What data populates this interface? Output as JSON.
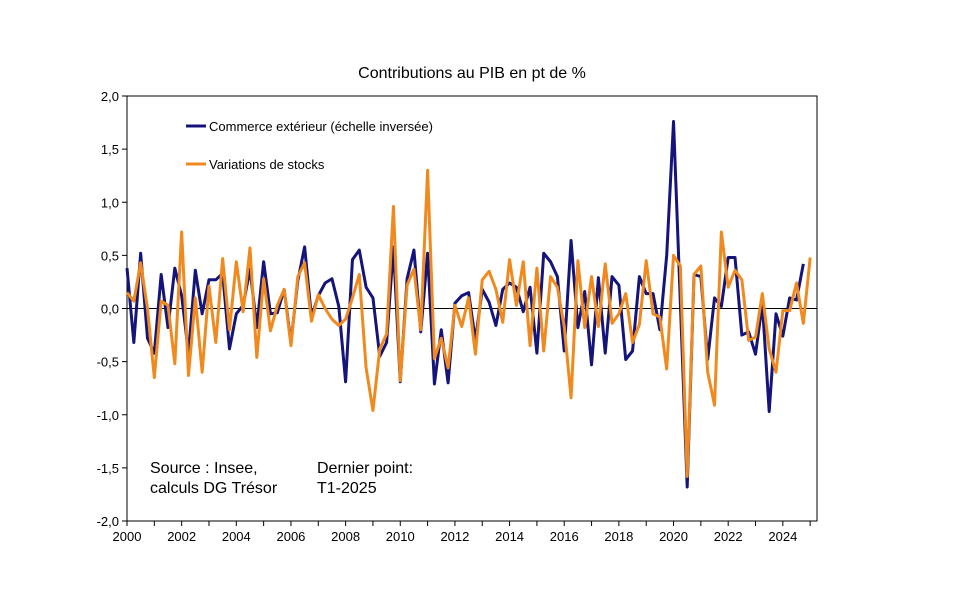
{
  "chart_data": {
    "type": "line",
    "title": "Contributions au PIB en pt de %",
    "xlabel": "",
    "ylabel": "",
    "xlim": [
      2000,
      2025.25
    ],
    "ylim": [
      -2.0,
      2.0
    ],
    "ytick_values": [
      2.0,
      1.5,
      1.0,
      0.5,
      0.0,
      -0.5,
      -1.0,
      -1.5,
      -2.0
    ],
    "ytick_labels": [
      "2,0",
      "1,5",
      "1,0",
      "0,5",
      "0,0",
      "-0,5",
      "-1,0",
      "-1,5",
      "-2,0"
    ],
    "xtick_values": [
      2000,
      2002,
      2004,
      2006,
      2008,
      2010,
      2012,
      2014,
      2016,
      2018,
      2020,
      2022,
      2024
    ],
    "xtick_labels": [
      "2000",
      "2002",
      "2004",
      "2006",
      "2008",
      "2010",
      "2012",
      "2014",
      "2016",
      "2018",
      "2020",
      "2022",
      "2024"
    ],
    "x_start": 2000,
    "x_step": 0.25,
    "legend_position": "top-left",
    "series": [
      {
        "name": "Commerce extérieur (échelle inversée)",
        "color": "#14147a",
        "values": [
          0.38,
          -0.32,
          0.52,
          -0.28,
          -0.42,
          0.32,
          -0.18,
          0.38,
          0.12,
          -0.42,
          0.36,
          -0.05,
          0.27,
          0.27,
          0.33,
          -0.38,
          -0.05,
          0.03,
          0.37,
          -0.18,
          0.44,
          -0.05,
          -0.04,
          0.18,
          -0.32,
          0.26,
          0.58,
          -0.08,
          0.12,
          0.24,
          0.28,
          0.02,
          -0.69,
          0.46,
          0.55,
          0.2,
          0.1,
          -0.45,
          -0.32,
          0.58,
          -0.69,
          0.28,
          0.55,
          -0.22,
          0.52,
          -0.71,
          -0.2,
          -0.7,
          0.05,
          0.12,
          0.15,
          -0.3,
          0.18,
          0.06,
          -0.16,
          0.18,
          0.24,
          0.2,
          -0.03,
          0.2,
          -0.42,
          0.52,
          0.44,
          0.3,
          -0.4,
          0.64,
          -0.18,
          0.16,
          -0.53,
          0.29,
          -0.42,
          0.3,
          0.22,
          -0.48,
          -0.4,
          0.3,
          0.14,
          0.14,
          -0.2,
          0.5,
          1.76,
          0.05,
          -1.68,
          0.32,
          0.3,
          -0.48,
          0.1,
          0.02,
          0.48,
          0.48,
          -0.25,
          -0.22,
          -0.43,
          0.05,
          -0.97,
          -0.05,
          -0.26,
          0.1,
          0.08,
          0.42
        ]
      },
      {
        "name": "Variations de stocks",
        "color": "#f08a1e",
        "values": [
          0.15,
          0.07,
          0.43,
          0.0,
          -0.65,
          0.07,
          0.03,
          -0.52,
          0.72,
          -0.63,
          0.1,
          -0.6,
          0.21,
          -0.32,
          0.47,
          -0.2,
          0.44,
          -0.03,
          0.57,
          -0.46,
          0.28,
          -0.21,
          0.03,
          0.18,
          -0.35,
          0.3,
          0.43,
          -0.12,
          0.13,
          0.0,
          -0.1,
          -0.16,
          -0.1,
          0.1,
          0.32,
          -0.56,
          -0.96,
          -0.38,
          -0.24,
          0.96,
          -0.68,
          0.22,
          0.37,
          -0.2,
          1.3,
          -0.47,
          -0.28,
          -0.56,
          0.03,
          -0.17,
          0.1,
          -0.43,
          0.27,
          0.35,
          0.18,
          -0.13,
          0.46,
          0.03,
          0.44,
          -0.35,
          0.38,
          -0.4,
          0.3,
          0.2,
          -0.17,
          -0.84,
          0.45,
          -0.18,
          0.3,
          -0.17,
          0.42,
          -0.14,
          -0.05,
          0.14,
          -0.32,
          -0.15,
          0.45,
          -0.05,
          -0.08,
          -0.57,
          0.5,
          0.4,
          -1.58,
          0.32,
          0.4,
          -0.6,
          -0.91,
          0.72,
          0.2,
          0.36,
          0.27,
          -0.3,
          -0.27,
          0.14,
          -0.38,
          -0.6,
          -0.02,
          -0.02,
          0.24,
          -0.14,
          0.48
        ]
      }
    ],
    "annotations": [
      {
        "text": [
          "Source : Insee,",
          "calculs DG Trésor"
        ],
        "position": "bottom-left"
      },
      {
        "text": [
          "Dernier point:",
          "T1-2025"
        ],
        "position": "bottom-center-left"
      }
    ]
  },
  "colors": {
    "background": "#ffffff",
    "axis": "#000000"
  }
}
